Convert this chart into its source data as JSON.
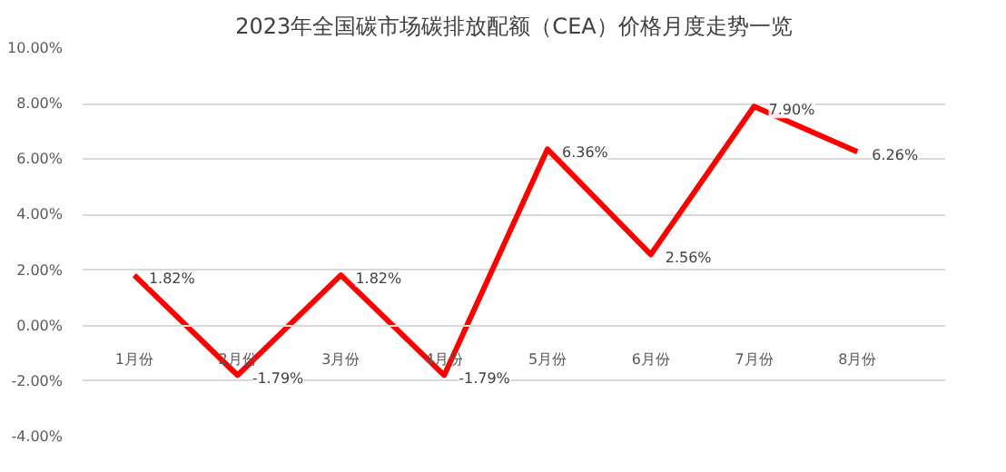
{
  "chart_data": {
    "type": "line",
    "title": "2023年全国碳市场碳排放配额（CEA）价格月度走势一览",
    "categories": [
      "1月份",
      "2月份",
      "3月份",
      "4月份",
      "5月份",
      "6月份",
      "7月份",
      "8月份"
    ],
    "series": [
      {
        "color": "#ff0000",
        "values": [
          1.82,
          -1.79,
          1.82,
          -1.79,
          6.36,
          2.56,
          7.9,
          6.26
        ],
        "value_labels": [
          "1.82%",
          "-1.79%",
          "1.82%",
          "-1.79%",
          "6.36%",
          "2.56%",
          "7.90%",
          "6.26%"
        ]
      }
    ],
    "ylim": [
      -4,
      10
    ],
    "yticks": [
      {
        "value": -4,
        "label": "-4.00%"
      },
      {
        "value": -2,
        "label": "-2.00%"
      },
      {
        "value": 0,
        "label": "0.00%"
      },
      {
        "value": 2,
        "label": "2.00%"
      },
      {
        "value": 4,
        "label": "4.00%"
      },
      {
        "value": 6,
        "label": "6.00%"
      },
      {
        "value": 8,
        "label": "8.00%"
      },
      {
        "value": 10,
        "label": "10.00%"
      }
    ],
    "grid": "y",
    "marker": "none",
    "line_style": "solid"
  }
}
